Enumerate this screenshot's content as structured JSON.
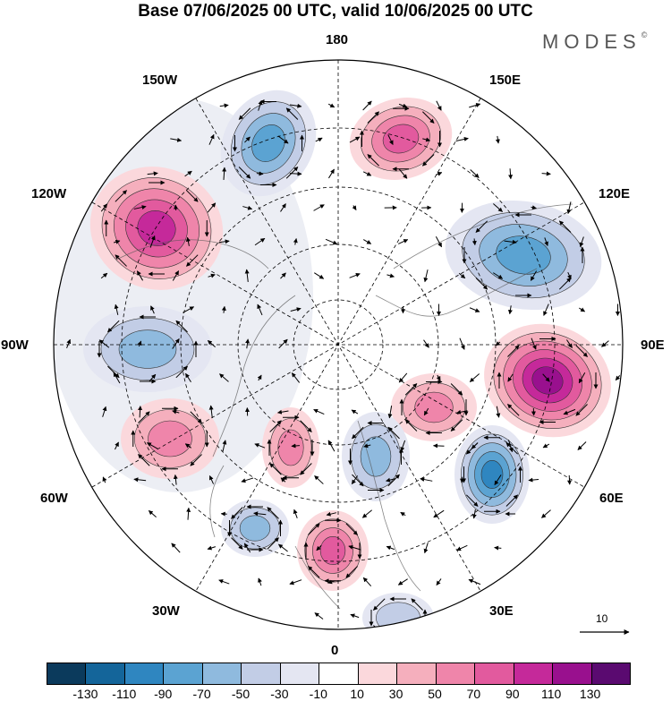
{
  "title": "Base 07/06/2025 00 UTC, valid 10/06/2025 00 UTC",
  "brand": "MODES",
  "brand_mark": "©",
  "longitude_labels": {
    "top": "180",
    "bottom": "0",
    "left": "90W",
    "right": "90E",
    "upper_left": "150W",
    "upper_right": "150E",
    "left_upper": "120W",
    "right_upper": "120E",
    "left_lower": "60W",
    "right_lower": "60E",
    "lower_left": "30W",
    "lower_right": "30E"
  },
  "reference_vector": {
    "label": "10"
  },
  "colorbar": {
    "colors": [
      "#0b3a5c",
      "#14659a",
      "#2f86c0",
      "#5ba3d2",
      "#8fbade",
      "#c2cde6",
      "#e4e6f2",
      "#ffffff",
      "#fbd8dc",
      "#f5afbd",
      "#ef85aa",
      "#e25a9e",
      "#c5299a",
      "#99108e",
      "#5a0a70"
    ],
    "ticks": [
      "-130",
      "-110",
      "-90",
      "-70",
      "-50",
      "-30",
      "-10",
      "10",
      "30",
      "50",
      "70",
      "90",
      "110",
      "130"
    ]
  },
  "anomaly_centers": [
    {
      "name": "anomaly-high-east-siberia",
      "sign": "positive",
      "level": 70
    },
    {
      "name": "anomaly-low-alaska-sea",
      "sign": "negative",
      "level": -70
    },
    {
      "name": "anomaly-high-canada-west",
      "sign": "positive",
      "level": 90
    },
    {
      "name": "anomaly-low-hudson",
      "sign": "negative",
      "level": -50
    },
    {
      "name": "anomaly-low-kara",
      "sign": "negative",
      "level": -70
    },
    {
      "name": "anomaly-high-central-siberia",
      "sign": "positive",
      "level": 110
    },
    {
      "name": "anomaly-low-kazakhstan",
      "sign": "negative",
      "level": -90
    },
    {
      "name": "anomaly-high-ural",
      "sign": "positive",
      "level": 50
    },
    {
      "name": "anomaly-low-scandinavia",
      "sign": "negative",
      "level": -50
    },
    {
      "name": "anomaly-high-north-atlantic",
      "sign": "positive",
      "level": 50
    },
    {
      "name": "anomaly-high-atlantic-west",
      "sign": "positive",
      "level": 50
    },
    {
      "name": "anomaly-high-europe",
      "sign": "positive",
      "level": 70
    },
    {
      "name": "anomaly-low-mid-atlantic",
      "sign": "negative",
      "level": -50
    },
    {
      "name": "anomaly-low-mediterranean",
      "sign": "negative",
      "level": -30
    }
  ]
}
